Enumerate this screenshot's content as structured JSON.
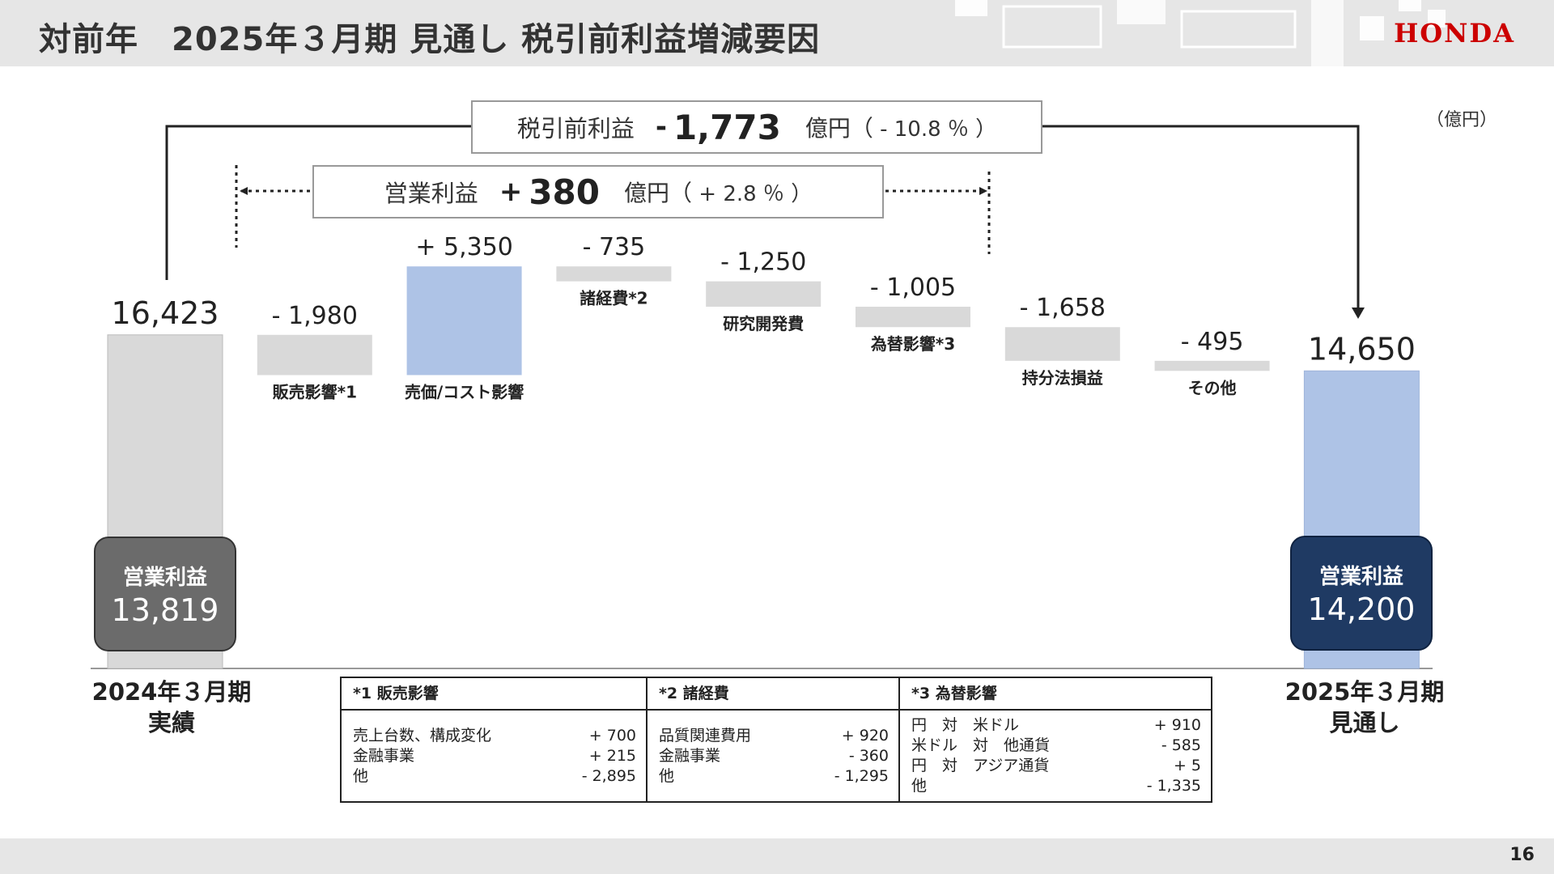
{
  "header": {
    "title": "対前年　2025年３月期 見通し 税引前利益増減要因"
  },
  "brand": {
    "logo_text": "HONDA"
  },
  "unit_label": "（億円）",
  "callouts": {
    "pretax": {
      "label": "税引前利益",
      "sign": "-",
      "value": "1,773",
      "unit": "億円（",
      "pct": " - 10.8 ％ ）"
    },
    "operating": {
      "label": "営業利益",
      "sign": "+",
      "value": "380",
      "unit": "億円（",
      "pct": " + 2.8 ％ ）"
    }
  },
  "operating_profit": {
    "left": {
      "label": "営業利益",
      "value": "13,819"
    },
    "right": {
      "label": "営業利益",
      "value": "14,200"
    }
  },
  "periods": {
    "left": [
      "2024年３月期",
      "実績"
    ],
    "right": [
      "2025年３月期",
      "見通し"
    ]
  },
  "chart_data": {
    "type": "bar",
    "subtype": "waterfall",
    "unit": "億円",
    "start": {
      "value": 16423,
      "label": "16,423"
    },
    "end": {
      "value": 14650,
      "label": "14,650"
    },
    "steps": [
      {
        "name": "販売影響*1",
        "value": -1980,
        "label": "- 1,980"
      },
      {
        "name": "売価/コスト影響",
        "value": 5350,
        "label": "+ 5,350"
      },
      {
        "name": "諸経費*2",
        "value": -735,
        "label": "- 735"
      },
      {
        "name": "研究開発費",
        "value": -1250,
        "label": "- 1,250"
      },
      {
        "name": "為替影響*3",
        "value": -1005,
        "label": "- 1,005"
      },
      {
        "name": "持分法損益",
        "value": -1658,
        "label": "- 1,658"
      },
      {
        "name": "その他",
        "value": -495,
        "label": "- 495"
      }
    ],
    "colors": {
      "total": "#d9d9d9",
      "decrease": "#d9d9d9",
      "increase": "#aec3e6",
      "end": "#aec3e6"
    }
  },
  "notes": [
    {
      "head": "*1 販売影響",
      "rows": [
        [
          "売上台数、構成変化",
          "+ 700"
        ],
        [
          "金融事業",
          "+ 215"
        ],
        [
          "他",
          "- 2,895"
        ]
      ]
    },
    {
      "head": "*2 諸経費",
      "rows": [
        [
          "品質関連費用",
          "+ 920"
        ],
        [
          "金融事業",
          "- 360"
        ],
        [
          "他",
          "- 1,295"
        ]
      ]
    },
    {
      "head": "*3 為替影響",
      "rows": [
        [
          "円　対　米ドル",
          "+ 910"
        ],
        [
          "米ドル　対　他通貨",
          "- 585"
        ],
        [
          "円　対　アジア通貨",
          "+ 5"
        ],
        [
          "他",
          "- 1,335"
        ]
      ]
    }
  ],
  "page_number": "16"
}
